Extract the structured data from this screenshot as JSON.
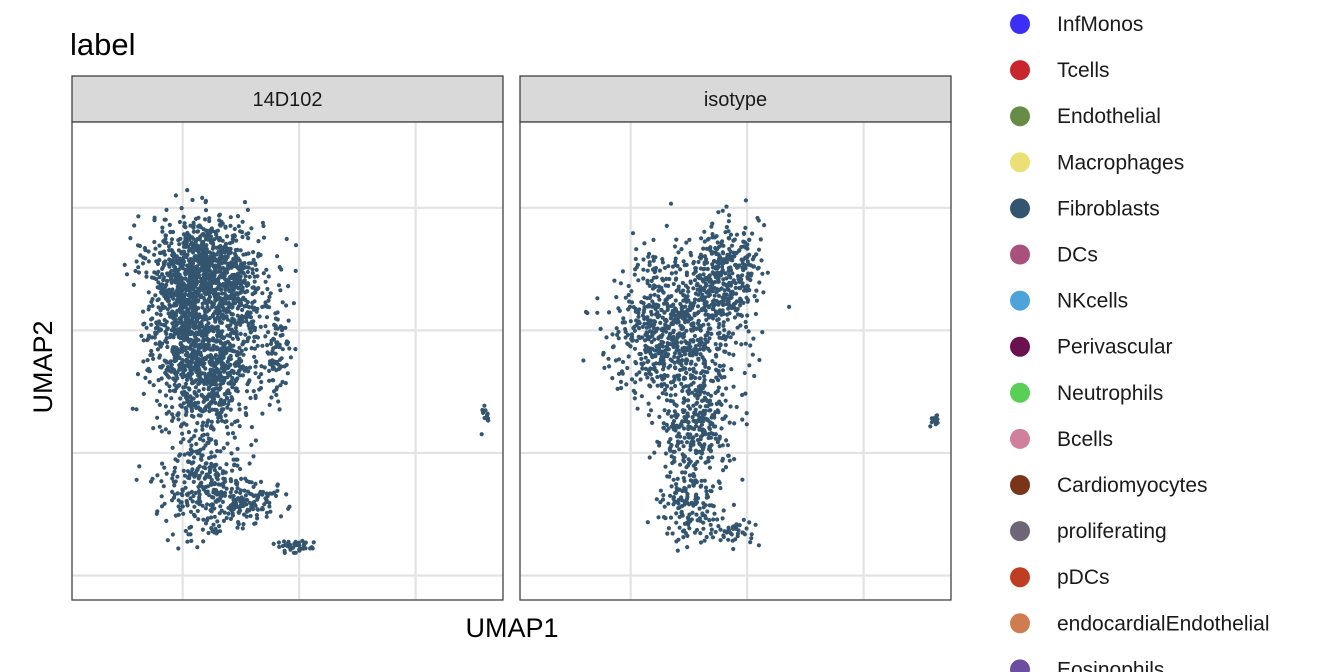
{
  "chart_data": {
    "type": "scatter",
    "title": "label",
    "xlabel": "UMAP1",
    "ylabel": "UMAP2",
    "grid": true,
    "legend_position": "right",
    "point_color": "#34556f",
    "facets": [
      {
        "name": "14D102",
        "clusters": [
          {
            "cx": 0.2,
            "cy": 0.77,
            "rx": 0.48,
            "ry": 0.2,
            "n": 700
          },
          {
            "cx": 0.05,
            "cy": 0.56,
            "rx": 0.35,
            "ry": 0.28,
            "n": 650
          },
          {
            "cx": 0.45,
            "cy": 0.56,
            "rx": 0.33,
            "ry": 0.26,
            "n": 320
          },
          {
            "cx": 0.18,
            "cy": 0.3,
            "rx": 0.38,
            "ry": 0.24,
            "n": 500
          },
          {
            "cx": 0.8,
            "cy": 0.38,
            "rx": 0.15,
            "ry": 0.2,
            "n": 90
          },
          {
            "cx": 0.2,
            "cy": -0.12,
            "rx": 0.36,
            "ry": 0.22,
            "n": 330
          },
          {
            "cx": 0.55,
            "cy": -0.2,
            "rx": 0.28,
            "ry": 0.08,
            "n": 110
          },
          {
            "cx": 0.95,
            "cy": -0.38,
            "rx": 0.16,
            "ry": 0.03,
            "n": 40
          },
          {
            "cx": 2.6,
            "cy": 0.15,
            "rx": 0.04,
            "ry": 0.05,
            "n": 14
          }
        ]
      },
      {
        "name": "isotype",
        "clusters": [
          {
            "cx": 0.8,
            "cy": 0.73,
            "rx": 0.3,
            "ry": 0.2,
            "n": 380
          },
          {
            "cx": 0.4,
            "cy": 0.48,
            "rx": 0.55,
            "ry": 0.22,
            "n": 620
          },
          {
            "cx": 0.28,
            "cy": 0.6,
            "rx": 0.32,
            "ry": 0.28,
            "n": 150
          },
          {
            "cx": 0.55,
            "cy": 0.12,
            "rx": 0.35,
            "ry": 0.22,
            "n": 330
          },
          {
            "cx": 0.5,
            "cy": -0.22,
            "rx": 0.25,
            "ry": 0.15,
            "n": 150
          },
          {
            "cx": 0.87,
            "cy": -0.32,
            "rx": 0.22,
            "ry": 0.06,
            "n": 40
          },
          {
            "cx": 2.6,
            "cy": 0.15,
            "rx": 0.04,
            "ry": 0.05,
            "n": 12
          }
        ]
      }
    ],
    "legend": [
      {
        "label": "InfMonos",
        "color": "#3b2ef5"
      },
      {
        "label": "Tcells",
        "color": "#c8262c"
      },
      {
        "label": "Endothelial",
        "color": "#668c47"
      },
      {
        "label": "Macrophages",
        "color": "#ebe076"
      },
      {
        "label": "Fibroblasts",
        "color": "#34556f"
      },
      {
        "label": "DCs",
        "color": "#a9507b"
      },
      {
        "label": "NKcells",
        "color": "#4fa3db"
      },
      {
        "label": "Perivascular",
        "color": "#6b1150"
      },
      {
        "label": "Neutrophils",
        "color": "#5acf55"
      },
      {
        "label": "Bcells",
        "color": "#d07f9d"
      },
      {
        "label": "Cardiomyocytes",
        "color": "#7a3419"
      },
      {
        "label": "proliferating",
        "color": "#6e6577"
      },
      {
        "label": "pDCs",
        "color": "#bf3e22"
      },
      {
        "label": "endocardialEndothelial",
        "color": "#cf7d4f"
      },
      {
        "label": "Eosinophils",
        "color": "#6b4ea2"
      }
    ]
  }
}
